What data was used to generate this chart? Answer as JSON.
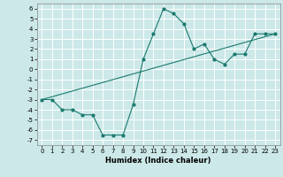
{
  "title": "",
  "xlabel": "Humidex (Indice chaleur)",
  "background_color": "#cce8e8",
  "grid_color": "#ffffff",
  "line_color": "#1a7a6e",
  "xlim": [
    -0.5,
    23.5
  ],
  "ylim": [
    -7.5,
    6.5
  ],
  "xticks": [
    0,
    1,
    2,
    3,
    4,
    5,
    6,
    7,
    8,
    9,
    10,
    11,
    12,
    13,
    14,
    15,
    16,
    17,
    18,
    19,
    20,
    21,
    22,
    23
  ],
  "yticks": [
    -7,
    -6,
    -5,
    -4,
    -3,
    -2,
    -1,
    0,
    1,
    2,
    3,
    4,
    5,
    6
  ],
  "curve_x": [
    0,
    1,
    2,
    3,
    4,
    5,
    6,
    7,
    8,
    9,
    10,
    11,
    12,
    13,
    14,
    15,
    16,
    17,
    18,
    19,
    20,
    21,
    22,
    23
  ],
  "curve_y": [
    -3,
    -3,
    -4,
    -4,
    -4.5,
    -4.5,
    -6.5,
    -6.5,
    -6.5,
    -3.5,
    1,
    3.5,
    6,
    5.5,
    4.5,
    2,
    2.5,
    1,
    0.5,
    1.5,
    1.5,
    3.5,
    3.5,
    3.5
  ],
  "line_x": [
    0,
    23
  ],
  "line_y": [
    -3,
    3.5
  ],
  "xlabel_fontsize": 6,
  "tick_fontsize": 5
}
